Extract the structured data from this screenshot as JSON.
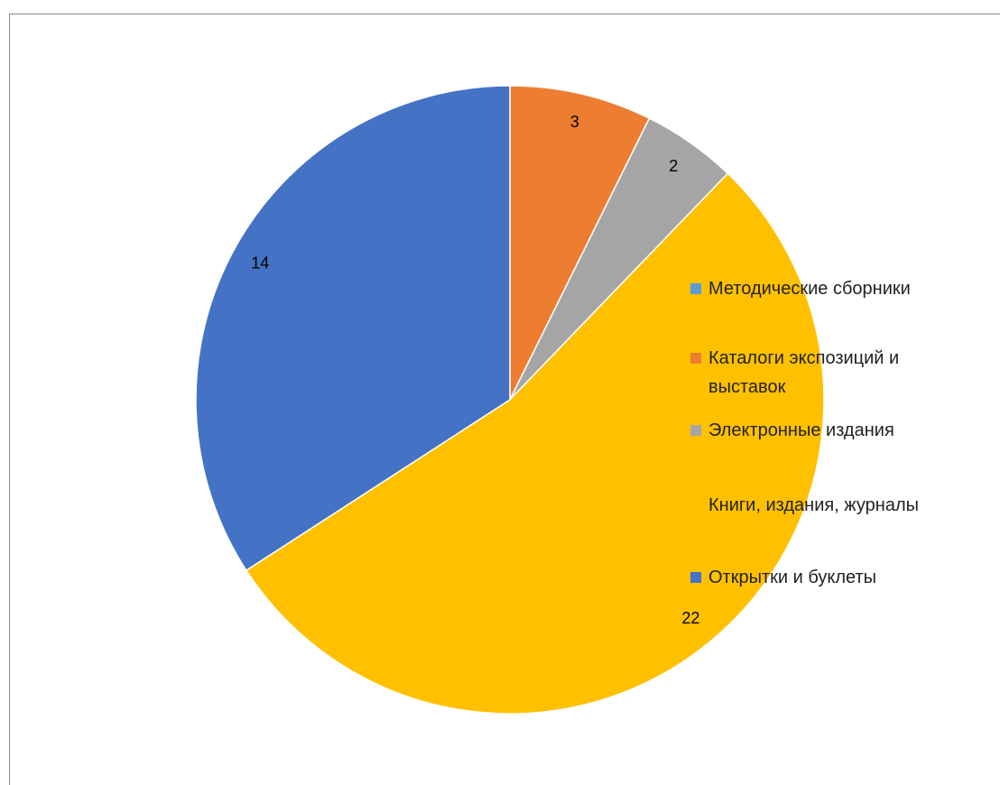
{
  "chart_data": {
    "type": "pie",
    "categories": [
      "Методические сборники",
      "Каталоги экспозиций и выставок",
      "Электронные издания",
      "Книги, издания, журналы",
      "Открытки и буклеты"
    ],
    "values": [
      0,
      3,
      2,
      22,
      14
    ],
    "colors": [
      "#5b9bd5",
      "#ed7d31",
      "#a5a5a5",
      "#ffc000",
      "#4472c4"
    ],
    "legend": "right"
  }
}
